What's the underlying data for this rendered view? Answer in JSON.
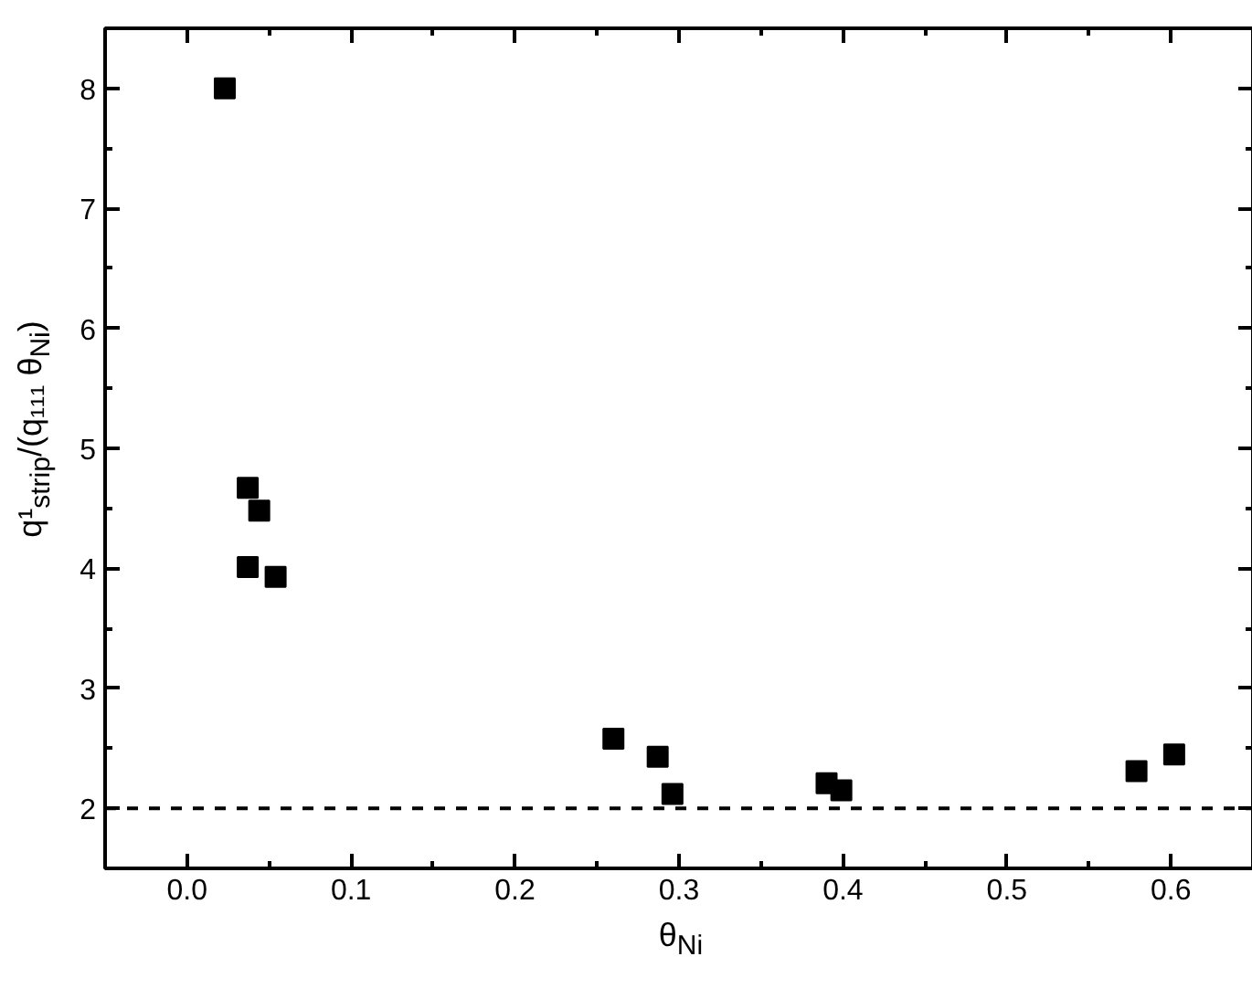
{
  "chart_data": {
    "type": "scatter",
    "xlabel": "θ$_{Ni}$",
    "ylabel": "q¹$_{strip}$/(q₁₁₁ θ$_{Ni}$)",
    "x": [
      0.023,
      0.037,
      0.044,
      0.037,
      0.054,
      0.26,
      0.287,
      0.296,
      0.39,
      0.399,
      0.579,
      0.602
    ],
    "series": [
      {
        "color": "#000000",
        "values": [
          8.0,
          4.67,
          4.48,
          4.01,
          3.93,
          2.58,
          2.43,
          2.12,
          2.21,
          2.15,
          2.31,
          2.45
        ]
      }
    ],
    "marker": "square",
    "xlim": [
      -0.05,
      0.65
    ],
    "ylim": [
      1.5,
      8.5
    ],
    "xticks": [
      {
        "value": 0.0,
        "label": "0.0"
      },
      {
        "value": 0.1,
        "label": "0.1"
      },
      {
        "value": 0.2,
        "label": "0.2"
      },
      {
        "value": 0.3,
        "label": "0.3"
      },
      {
        "value": 0.4,
        "label": "0.4"
      },
      {
        "value": 0.5,
        "label": "0.5"
      },
      {
        "value": 0.6,
        "label": "0.6"
      }
    ],
    "yticks": [
      2,
      3,
      4,
      5,
      6,
      7,
      8
    ],
    "ref_lines": [
      {
        "axis": "y",
        "value": 2,
        "line_style": "dashed",
        "color": "#000000"
      }
    ],
    "grid": false
  }
}
